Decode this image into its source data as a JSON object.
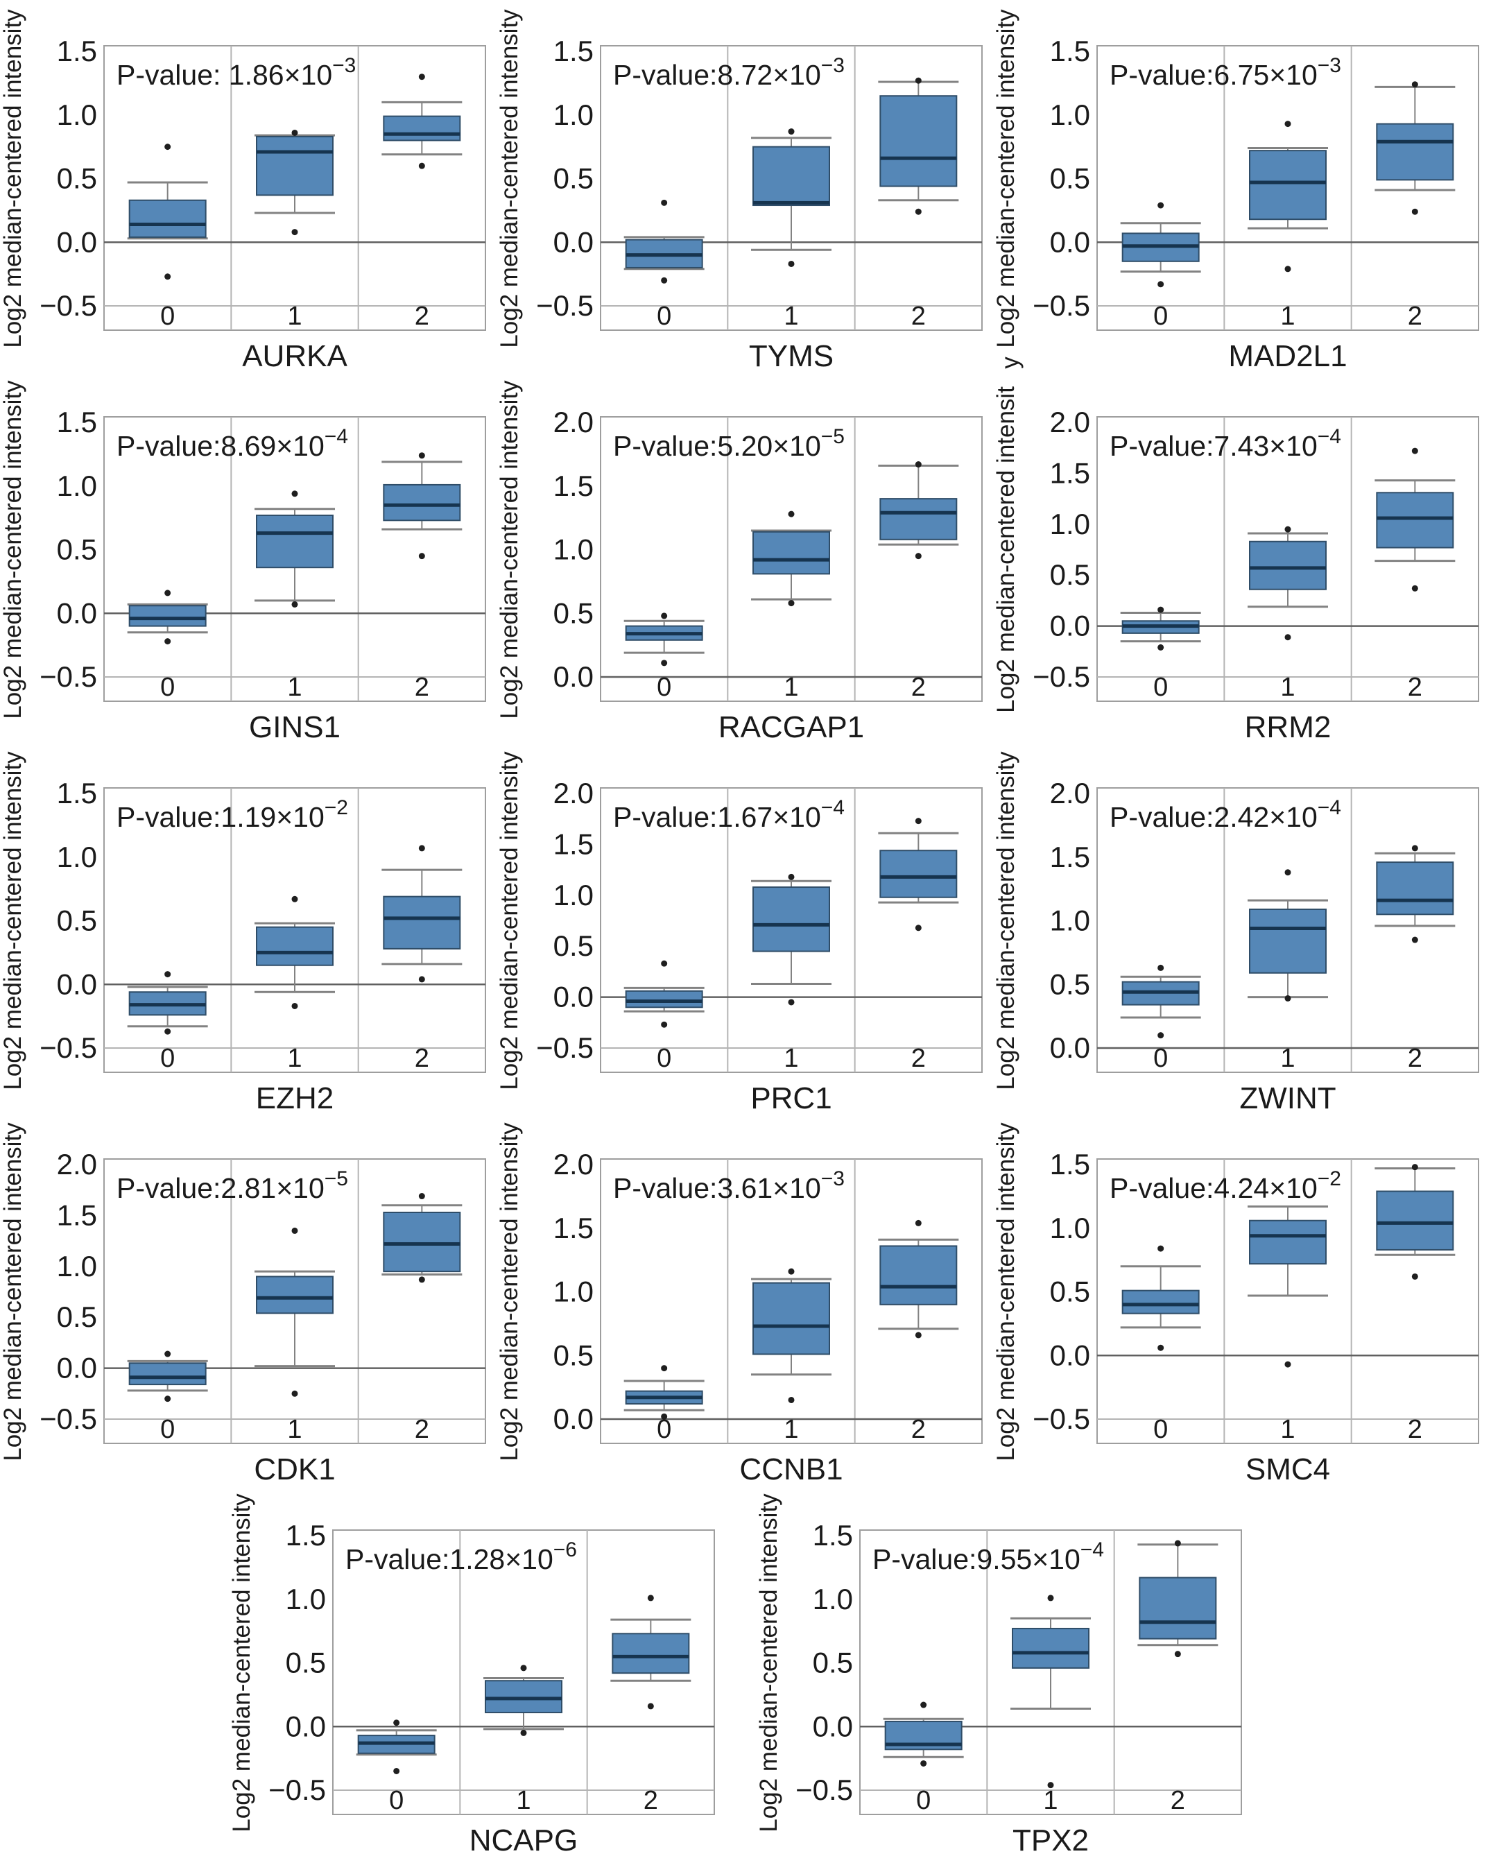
{
  "figure": {
    "description": "Grid of 14 box plots of gene expression (Log2 median-centered intensity) across groups 0, 1, 2",
    "shared_ylabel": "Log2 median-centered intensity",
    "x_categories": [
      "0",
      "1",
      "2"
    ],
    "colors": {
      "box_fill": "#5587B7",
      "box_border": "#2F4D68",
      "median_line": "#16344F",
      "whisker": "#828282",
      "grid_line": "#b4b4b4",
      "zero_line": "#606060",
      "plot_border": "#9e9e9e",
      "text": "#1a1a1a",
      "outlier": "#1f1f1f",
      "background": "#ffffff"
    }
  },
  "chart_data": [
    {
      "type": "box",
      "gene": "AURKA",
      "pvalue": {
        "base": "P-value: 1.86×10",
        "sup": "−3"
      },
      "ylabel": "Log2 median-centered intensity",
      "ylabel_overflow": "",
      "ylim": [
        -0.5,
        1.5
      ],
      "yticks": [
        1.5,
        1.0,
        0.5,
        0.0,
        -0.5
      ],
      "ytick_labels": [
        "1.5",
        "1.0",
        "0.5",
        "0.0",
        "−0.5"
      ],
      "categories": [
        "0",
        "1",
        "2"
      ],
      "groups": [
        {
          "category": "0",
          "q1": 0.04,
          "median": 0.14,
          "q3": 0.33,
          "whisker_low": 0.03,
          "whisker_high": 0.47,
          "outliers": [
            0.75,
            -0.27
          ]
        },
        {
          "category": "1",
          "q1": 0.37,
          "median": 0.71,
          "q3": 0.83,
          "whisker_low": 0.23,
          "whisker_high": 0.84,
          "outliers": [
            0.86,
            0.08
          ]
        },
        {
          "category": "2",
          "q1": 0.8,
          "median": 0.85,
          "q3": 0.99,
          "whisker_low": 0.69,
          "whisker_high": 1.1,
          "outliers": [
            1.3,
            0.6
          ]
        }
      ]
    },
    {
      "type": "box",
      "gene": "TYMS",
      "pvalue": {
        "base": "P-value:8.72×10",
        "sup": "−3"
      },
      "ylabel": "Log2 median-centered intensity",
      "ylabel_overflow": "",
      "ylim": [
        -0.5,
        1.5
      ],
      "yticks": [
        1.5,
        1.0,
        0.5,
        0.0,
        -0.5
      ],
      "ytick_labels": [
        "1.5",
        "1.0",
        "0.5",
        "0.0",
        "−0.5"
      ],
      "categories": [
        "0",
        "1",
        "2"
      ],
      "groups": [
        {
          "category": "0",
          "q1": -0.2,
          "median": -0.1,
          "q3": 0.02,
          "whisker_low": -0.21,
          "whisker_high": 0.04,
          "outliers": [
            0.31,
            -0.3
          ]
        },
        {
          "category": "1",
          "q1": 0.29,
          "median": 0.31,
          "q3": 0.75,
          "whisker_low": -0.06,
          "whisker_high": 0.82,
          "outliers": [
            0.87,
            -0.17
          ]
        },
        {
          "category": "2",
          "q1": 0.44,
          "median": 0.66,
          "q3": 1.15,
          "whisker_low": 0.33,
          "whisker_high": 1.26,
          "outliers": [
            1.27,
            0.24
          ]
        }
      ]
    },
    {
      "type": "box",
      "gene": "MAD2L1",
      "pvalue": {
        "base": "P-value:6.75×10",
        "sup": "−3"
      },
      "ylabel": "Log2 median-centered intensity",
      "ylabel_overflow": "",
      "ylim": [
        -0.5,
        1.5
      ],
      "yticks": [
        1.5,
        1.0,
        0.5,
        0.0,
        -0.5
      ],
      "ytick_labels": [
        "1.5",
        "1.0",
        "0.5",
        "0.0",
        "−0.5"
      ],
      "categories": [
        "0",
        "1",
        "2"
      ],
      "groups": [
        {
          "category": "0",
          "q1": -0.15,
          "median": -0.03,
          "q3": 0.07,
          "whisker_low": -0.23,
          "whisker_high": 0.15,
          "outliers": [
            0.29,
            -0.33
          ]
        },
        {
          "category": "1",
          "q1": 0.18,
          "median": 0.47,
          "q3": 0.72,
          "whisker_low": 0.11,
          "whisker_high": 0.74,
          "outliers": [
            0.93,
            -0.21
          ]
        },
        {
          "category": "2",
          "q1": 0.49,
          "median": 0.79,
          "q3": 0.93,
          "whisker_low": 0.41,
          "whisker_high": 1.22,
          "outliers": [
            1.24,
            0.24
          ]
        }
      ]
    },
    {
      "type": "box",
      "gene": "GINS1",
      "pvalue": {
        "base": "P-value:8.69×10",
        "sup": "−4"
      },
      "ylabel": "Log2 median-centered intensity",
      "ylabel_overflow": "",
      "ylim": [
        -0.5,
        1.5
      ],
      "yticks": [
        1.5,
        1.0,
        0.5,
        0.0,
        -0.5
      ],
      "ytick_labels": [
        "1.5",
        "1.0",
        "0.5",
        "0.0",
        "−0.5"
      ],
      "categories": [
        "0",
        "1",
        "2"
      ],
      "groups": [
        {
          "category": "0",
          "q1": -0.1,
          "median": -0.04,
          "q3": 0.06,
          "whisker_low": -0.15,
          "whisker_high": 0.07,
          "outliers": [
            0.16,
            -0.22
          ]
        },
        {
          "category": "1",
          "q1": 0.36,
          "median": 0.63,
          "q3": 0.77,
          "whisker_low": 0.1,
          "whisker_high": 0.82,
          "outliers": [
            0.94,
            0.07
          ]
        },
        {
          "category": "2",
          "q1": 0.73,
          "median": 0.85,
          "q3": 1.01,
          "whisker_low": 0.66,
          "whisker_high": 1.19,
          "outliers": [
            1.24,
            0.45
          ]
        }
      ]
    },
    {
      "type": "box",
      "gene": "RACGAP1",
      "pvalue": {
        "base": "P-value:5.20×10",
        "sup": "−5"
      },
      "ylabel": "Log2 median-centered intensity",
      "ylabel_overflow": "",
      "ylim": [
        0.0,
        2.0
      ],
      "yticks": [
        2.0,
        1.5,
        1.0,
        0.5,
        0.0
      ],
      "ytick_labels": [
        "2.0",
        "1.5",
        "1.0",
        "0.5",
        "0.0"
      ],
      "categories": [
        "0",
        "1",
        "2"
      ],
      "groups": [
        {
          "category": "0",
          "q1": 0.29,
          "median": 0.34,
          "q3": 0.4,
          "whisker_low": 0.19,
          "whisker_high": 0.44,
          "outliers": [
            0.48,
            0.11
          ]
        },
        {
          "category": "1",
          "q1": 0.81,
          "median": 0.92,
          "q3": 1.14,
          "whisker_low": 0.61,
          "whisker_high": 1.15,
          "outliers": [
            1.28,
            0.58
          ]
        },
        {
          "category": "2",
          "q1": 1.08,
          "median": 1.29,
          "q3": 1.4,
          "whisker_low": 1.04,
          "whisker_high": 1.66,
          "outliers": [
            1.67,
            0.95
          ]
        }
      ]
    },
    {
      "type": "box",
      "gene": "RRM2",
      "pvalue": {
        "base": "P-value:7.43×10",
        "sup": "−4"
      },
      "ylabel": "Log2 median-centered intensit",
      "ylabel_overflow": "y",
      "ylim": [
        -0.5,
        2.0
      ],
      "yticks": [
        2.0,
        1.5,
        1.0,
        0.5,
        0.0,
        -0.5
      ],
      "ytick_labels": [
        "2.0",
        "1.5",
        "1.0",
        "0.5",
        "0.0",
        "−0.5"
      ],
      "categories": [
        "0",
        "1",
        "2"
      ],
      "groups": [
        {
          "category": "0",
          "q1": -0.07,
          "median": 0.0,
          "q3": 0.05,
          "whisker_low": -0.15,
          "whisker_high": 0.13,
          "outliers": [
            0.16,
            -0.21
          ]
        },
        {
          "category": "1",
          "q1": 0.36,
          "median": 0.57,
          "q3": 0.83,
          "whisker_low": 0.19,
          "whisker_high": 0.91,
          "outliers": [
            0.95,
            -0.11
          ]
        },
        {
          "category": "2",
          "q1": 0.77,
          "median": 1.06,
          "q3": 1.31,
          "whisker_low": 0.64,
          "whisker_high": 1.43,
          "outliers": [
            1.72,
            0.37
          ]
        }
      ]
    },
    {
      "type": "box",
      "gene": "EZH2",
      "pvalue": {
        "base": "P-value:1.19×10",
        "sup": "−2"
      },
      "ylabel": "Log2 median-centered intensity",
      "ylabel_overflow": "",
      "ylim": [
        -0.5,
        1.5
      ],
      "yticks": [
        1.5,
        1.0,
        0.5,
        0.0,
        -0.5
      ],
      "ytick_labels": [
        "1.5",
        "1.0",
        "0.5",
        "0.0",
        "−0.5"
      ],
      "categories": [
        "0",
        "1",
        "2"
      ],
      "groups": [
        {
          "category": "0",
          "q1": -0.24,
          "median": -0.16,
          "q3": -0.06,
          "whisker_low": -0.33,
          "whisker_high": -0.02,
          "outliers": [
            0.08,
            -0.37
          ]
        },
        {
          "category": "1",
          "q1": 0.15,
          "median": 0.25,
          "q3": 0.45,
          "whisker_low": -0.06,
          "whisker_high": 0.48,
          "outliers": [
            0.67,
            -0.17
          ]
        },
        {
          "category": "2",
          "q1": 0.28,
          "median": 0.52,
          "q3": 0.69,
          "whisker_low": 0.16,
          "whisker_high": 0.9,
          "outliers": [
            1.07,
            0.04
          ]
        }
      ]
    },
    {
      "type": "box",
      "gene": "PRC1",
      "pvalue": {
        "base": "P-value:1.67×10",
        "sup": "−4"
      },
      "ylabel": "Log2 median-centered intensity",
      "ylabel_overflow": "",
      "ylim": [
        -0.5,
        2.0
      ],
      "yticks": [
        2.0,
        1.5,
        1.0,
        0.5,
        0.0,
        -0.5
      ],
      "ytick_labels": [
        "2.0",
        "1.5",
        "1.0",
        "0.5",
        "0.0",
        "−0.5"
      ],
      "categories": [
        "0",
        "1",
        "2"
      ],
      "groups": [
        {
          "category": "0",
          "q1": -0.1,
          "median": -0.04,
          "q3": 0.06,
          "whisker_low": -0.14,
          "whisker_high": 0.09,
          "outliers": [
            0.33,
            -0.27
          ]
        },
        {
          "category": "1",
          "q1": 0.45,
          "median": 0.71,
          "q3": 1.08,
          "whisker_low": 0.13,
          "whisker_high": 1.14,
          "outliers": [
            1.18,
            -0.05
          ]
        },
        {
          "category": "2",
          "q1": 0.98,
          "median": 1.18,
          "q3": 1.44,
          "whisker_low": 0.93,
          "whisker_high": 1.61,
          "outliers": [
            1.73,
            0.68
          ]
        }
      ]
    },
    {
      "type": "box",
      "gene": "ZWINT",
      "pvalue": {
        "base": "P-value:2.42×10",
        "sup": "−4"
      },
      "ylabel": "Log2 median-centered intensity",
      "ylabel_overflow": "",
      "ylim": [
        0.0,
        2.0
      ],
      "yticks": [
        2.0,
        1.5,
        1.0,
        0.5,
        0.0
      ],
      "ytick_labels": [
        "2.0",
        "1.5",
        "1.0",
        "0.5",
        "0.0"
      ],
      "categories": [
        "0",
        "1",
        "2"
      ],
      "groups": [
        {
          "category": "0",
          "q1": 0.34,
          "median": 0.44,
          "q3": 0.52,
          "whisker_low": 0.24,
          "whisker_high": 0.56,
          "outliers": [
            0.63,
            0.1
          ]
        },
        {
          "category": "1",
          "q1": 0.59,
          "median": 0.94,
          "q3": 1.09,
          "whisker_low": 0.4,
          "whisker_high": 1.16,
          "outliers": [
            1.38,
            0.39
          ]
        },
        {
          "category": "2",
          "q1": 1.05,
          "median": 1.16,
          "q3": 1.46,
          "whisker_low": 0.96,
          "whisker_high": 1.53,
          "outliers": [
            1.57,
            0.85
          ]
        }
      ]
    },
    {
      "type": "box",
      "gene": "CDK1",
      "pvalue": {
        "base": "P-value:2.81×10",
        "sup": "−5"
      },
      "ylabel": "Log2 median-centered intensity",
      "ylabel_overflow": "",
      "ylim": [
        -0.5,
        2.0
      ],
      "yticks": [
        2.0,
        1.5,
        1.0,
        0.5,
        0.0,
        -0.5
      ],
      "ytick_labels": [
        "2.0",
        "1.5",
        "1.0",
        "0.5",
        "0.0",
        "−0.5"
      ],
      "categories": [
        "0",
        "1",
        "2"
      ],
      "groups": [
        {
          "category": "0",
          "q1": -0.16,
          "median": -0.09,
          "q3": 0.05,
          "whisker_low": -0.22,
          "whisker_high": 0.07,
          "outliers": [
            0.14,
            -0.3
          ]
        },
        {
          "category": "1",
          "q1": 0.54,
          "median": 0.69,
          "q3": 0.9,
          "whisker_low": 0.02,
          "whisker_high": 0.95,
          "outliers": [
            1.35,
            -0.25
          ]
        },
        {
          "category": "2",
          "q1": 0.95,
          "median": 1.22,
          "q3": 1.53,
          "whisker_low": 0.92,
          "whisker_high": 1.6,
          "outliers": [
            1.69,
            0.87
          ]
        }
      ]
    },
    {
      "type": "box",
      "gene": "CCNB1",
      "pvalue": {
        "base": "P-value:3.61×10",
        "sup": "−3"
      },
      "ylabel": "Log2 median-centered intensity",
      "ylabel_overflow": "",
      "ylim": [
        0.0,
        2.0
      ],
      "yticks": [
        2.0,
        1.5,
        1.0,
        0.5,
        0.0
      ],
      "ytick_labels": [
        "2.0",
        "1.5",
        "1.0",
        "0.5",
        "0.0"
      ],
      "categories": [
        "0",
        "1",
        "2"
      ],
      "groups": [
        {
          "category": "0",
          "q1": 0.12,
          "median": 0.17,
          "q3": 0.22,
          "whisker_low": 0.07,
          "whisker_high": 0.3,
          "outliers": [
            0.4,
            0.02
          ]
        },
        {
          "category": "1",
          "q1": 0.51,
          "median": 0.73,
          "q3": 1.07,
          "whisker_low": 0.35,
          "whisker_high": 1.1,
          "outliers": [
            1.16,
            0.15
          ]
        },
        {
          "category": "2",
          "q1": 0.9,
          "median": 1.04,
          "q3": 1.36,
          "whisker_low": 0.71,
          "whisker_high": 1.41,
          "outliers": [
            1.54,
            0.66
          ]
        }
      ]
    },
    {
      "type": "box",
      "gene": "SMC4",
      "pvalue": {
        "base": "P-value:4.24×10",
        "sup": "−2"
      },
      "ylabel": "Log2 median-centered intensity",
      "ylabel_overflow": "",
      "ylim": [
        -0.5,
        1.5
      ],
      "yticks": [
        1.5,
        1.0,
        0.5,
        0.0,
        -0.5
      ],
      "ytick_labels": [
        "1.5",
        "1.0",
        "0.5",
        "0.0",
        "−0.5"
      ],
      "categories": [
        "0",
        "1",
        "2"
      ],
      "groups": [
        {
          "category": "0",
          "q1": 0.33,
          "median": 0.4,
          "q3": 0.51,
          "whisker_low": 0.22,
          "whisker_high": 0.7,
          "outliers": [
            0.84,
            0.06
          ]
        },
        {
          "category": "1",
          "q1": 0.72,
          "median": 0.94,
          "q3": 1.06,
          "whisker_low": 0.47,
          "whisker_high": 1.17,
          "outliers": [
            -0.07
          ]
        },
        {
          "category": "2",
          "q1": 0.83,
          "median": 1.04,
          "q3": 1.29,
          "whisker_low": 0.79,
          "whisker_high": 1.47,
          "outliers": [
            1.48,
            0.62
          ]
        }
      ]
    },
    {
      "type": "box",
      "gene": "NCAPG",
      "pvalue": {
        "base": "P-value:1.28×10",
        "sup": "−6"
      },
      "ylabel": "Log2 median-centered intensity",
      "ylabel_overflow": "",
      "ylim": [
        -0.5,
        1.5
      ],
      "yticks": [
        1.5,
        1.0,
        0.5,
        0.0,
        -0.5
      ],
      "ytick_labels": [
        "1.5",
        "1.0",
        "0.5",
        "0.0",
        "−0.5"
      ],
      "categories": [
        "0",
        "1",
        "2"
      ],
      "groups": [
        {
          "category": "0",
          "q1": -0.21,
          "median": -0.13,
          "q3": -0.07,
          "whisker_low": -0.22,
          "whisker_high": -0.03,
          "outliers": [
            0.03,
            -0.35
          ]
        },
        {
          "category": "1",
          "q1": 0.11,
          "median": 0.22,
          "q3": 0.36,
          "whisker_low": -0.02,
          "whisker_high": 0.38,
          "outliers": [
            0.46,
            -0.05
          ]
        },
        {
          "category": "2",
          "q1": 0.42,
          "median": 0.55,
          "q3": 0.73,
          "whisker_low": 0.36,
          "whisker_high": 0.84,
          "outliers": [
            1.01,
            0.16
          ]
        }
      ]
    },
    {
      "type": "box",
      "gene": "TPX2",
      "pvalue": {
        "base": "P-value:9.55×10",
        "sup": "−4"
      },
      "ylabel": "Log2 median-centered intensity",
      "ylabel_overflow": "",
      "ylim": [
        -0.5,
        1.5
      ],
      "yticks": [
        1.5,
        1.0,
        0.5,
        0.0,
        -0.5
      ],
      "ytick_labels": [
        "1.5",
        "1.0",
        "0.5",
        "0.0",
        "−0.5"
      ],
      "categories": [
        "0",
        "1",
        "2"
      ],
      "groups": [
        {
          "category": "0",
          "q1": -0.18,
          "median": -0.14,
          "q3": 0.04,
          "whisker_low": -0.24,
          "whisker_high": 0.06,
          "outliers": [
            0.17,
            -0.29
          ]
        },
        {
          "category": "1",
          "q1": 0.46,
          "median": 0.58,
          "q3": 0.77,
          "whisker_low": 0.14,
          "whisker_high": 0.85,
          "outliers": [
            1.01,
            -0.46
          ]
        },
        {
          "category": "2",
          "q1": 0.69,
          "median": 0.82,
          "q3": 1.17,
          "whisker_low": 0.64,
          "whisker_high": 1.43,
          "outliers": [
            1.44,
            0.57
          ]
        }
      ]
    }
  ]
}
